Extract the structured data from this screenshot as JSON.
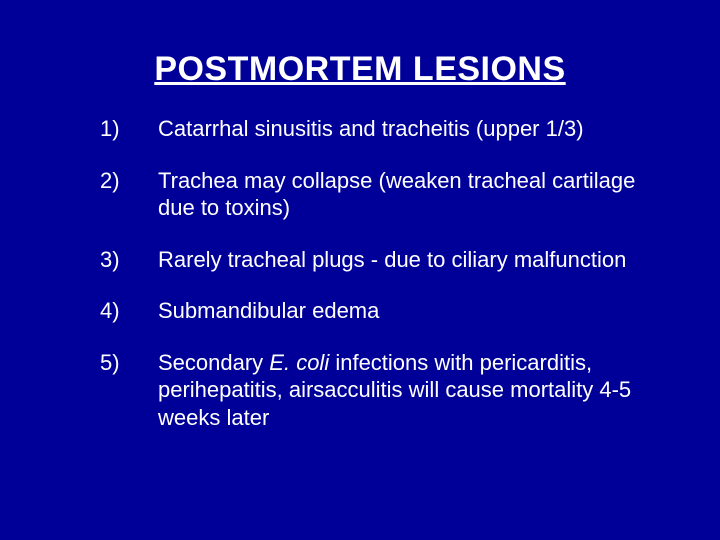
{
  "background_color": "#000099",
  "text_color": "#ffffff",
  "title": {
    "text": "POSTMORTEM LESIONS",
    "fontsize": 34,
    "bold": true,
    "underline": true
  },
  "items": [
    {
      "num": "1)",
      "text": "Catarrhal sinusitis and tracheitis (upper 1/3)"
    },
    {
      "num": "2)",
      "text": "Trachea may collapse (weaken tracheal cartilage due to toxins)"
    },
    {
      "num": "3)",
      "text": "Rarely tracheal plugs - due to ciliary malfunction"
    },
    {
      "num": "4)",
      "text": "Submandibular edema"
    },
    {
      "num": "5)",
      "text_pre": "Secondary ",
      "text_italic": "E. coli",
      "text_post": " infections with pericarditis, perihepatitis, airsacculitis will cause mortality 4‑5 weeks later"
    }
  ],
  "body_fontsize": 22
}
